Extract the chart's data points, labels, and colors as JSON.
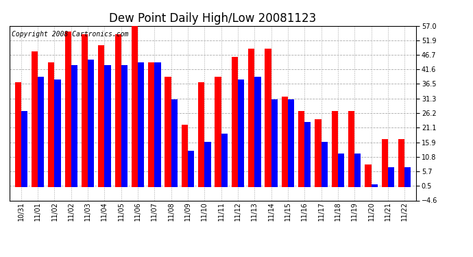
{
  "title": "Dew Point Daily High/Low 20081123",
  "copyright": "Copyright 2008 Cartronics.com",
  "x_labels": [
    "10/31",
    "11/01",
    "11/02",
    "11/02",
    "11/03",
    "11/04",
    "11/05",
    "11/06",
    "11/07",
    "11/08",
    "11/09",
    "11/10",
    "11/11",
    "11/12",
    "11/13",
    "11/14",
    "11/15",
    "11/16",
    "11/17",
    "11/18",
    "11/19",
    "11/20",
    "11/21",
    "11/22"
  ],
  "high_values": [
    37.0,
    48.0,
    44.0,
    55.0,
    54.0,
    50.0,
    54.0,
    57.0,
    44.0,
    39.0,
    22.0,
    37.0,
    39.0,
    46.0,
    49.0,
    49.0,
    32.0,
    27.0,
    24.0,
    27.0,
    27.0,
    8.0,
    17.0,
    17.0
  ],
  "low_values": [
    27.0,
    39.0,
    38.0,
    43.0,
    45.0,
    43.0,
    43.0,
    44.0,
    44.0,
    31.0,
    13.0,
    16.0,
    19.0,
    38.0,
    39.0,
    31.0,
    31.0,
    23.0,
    16.0,
    12.0,
    12.0,
    1.0,
    7.0,
    7.0
  ],
  "high_color": "#FF0000",
  "low_color": "#0000FF",
  "bg_color": "#FFFFFF",
  "grid_color": "#AAAAAA",
  "ylim_min": -4.6,
  "ylim_max": 57.0,
  "yticks": [
    -4.6,
    0.5,
    5.7,
    10.8,
    15.9,
    21.1,
    26.2,
    31.3,
    36.5,
    41.6,
    46.7,
    51.9,
    57.0
  ],
  "bar_width": 0.38,
  "title_fontsize": 12,
  "tick_fontsize": 7,
  "copyright_fontsize": 7
}
